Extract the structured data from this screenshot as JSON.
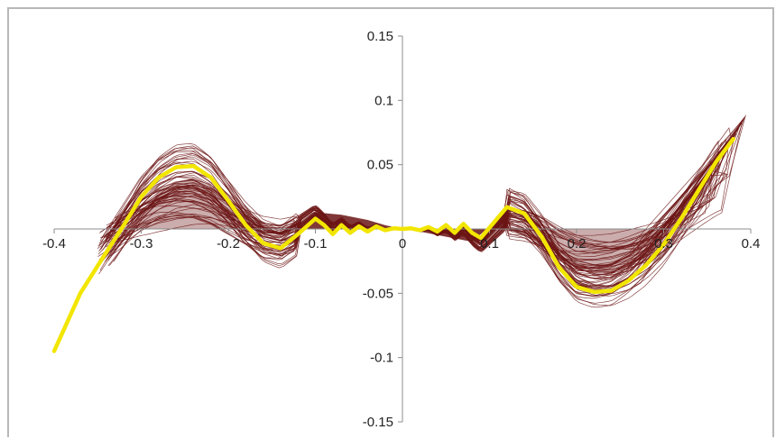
{
  "chart_data": {
    "type": "line",
    "title": "",
    "xlabel": "",
    "ylabel": "",
    "xlim": [
      -0.4,
      0.4
    ],
    "ylim": [
      -0.15,
      0.15
    ],
    "x_ticks": [
      -0.4,
      -0.3,
      -0.2,
      -0.1,
      0,
      0.1,
      0.2,
      0.3,
      0.4
    ],
    "x_tick_labels": [
      "-0.4",
      "-0.3",
      "-0.2",
      "-0.1",
      "0",
      "0.1",
      "0.2",
      "0.3",
      "0.4"
    ],
    "y_ticks": [
      0.15,
      0.1,
      0.05,
      -0.05,
      -0.1,
      -0.15
    ],
    "y_tick_labels": [
      "0.15",
      "0.1",
      "0.05",
      "-0.05",
      "-0.1",
      "-0.15"
    ],
    "axes_cross_at": [
      0,
      0
    ],
    "grid": false,
    "legend": "none",
    "colors": {
      "highlight": "#f2e600",
      "family": "#6b1414"
    },
    "series": [
      {
        "style": "thick yellow line",
        "x": [
          -0.4,
          -0.37,
          -0.34,
          -0.32,
          -0.3,
          -0.28,
          -0.26,
          -0.24,
          -0.22,
          -0.2,
          -0.18,
          -0.16,
          -0.14,
          -0.12,
          -0.1,
          -0.09,
          -0.08,
          -0.07,
          -0.06,
          -0.05,
          -0.04,
          -0.03,
          -0.02,
          -0.01,
          0,
          0.01,
          0.02,
          0.03,
          0.04,
          0.05,
          0.06,
          0.07,
          0.08,
          0.09,
          0.1,
          0.12,
          0.14,
          0.16,
          0.18,
          0.2,
          0.22,
          0.24,
          0.26,
          0.28,
          0.3,
          0.32,
          0.34,
          0.36,
          0.38
        ],
        "y": [
          -0.095,
          -0.05,
          -0.018,
          0.003,
          0.025,
          0.04,
          0.048,
          0.049,
          0.04,
          0.022,
          0.003,
          -0.011,
          -0.015,
          -0.004,
          0.008,
          0.003,
          -0.004,
          0.003,
          -0.003,
          0.002,
          -0.002,
          0.002,
          -0.001,
          0.0005,
          0,
          0.0005,
          -0.001,
          0.0015,
          -0.002,
          0.003,
          -0.003,
          0.004,
          -0.003,
          -0.007,
          0.001,
          0.017,
          0.012,
          -0.006,
          -0.03,
          -0.045,
          -0.049,
          -0.048,
          -0.04,
          -0.028,
          -0.012,
          0.008,
          0.03,
          0.052,
          0.07
        ]
      }
    ]
  }
}
